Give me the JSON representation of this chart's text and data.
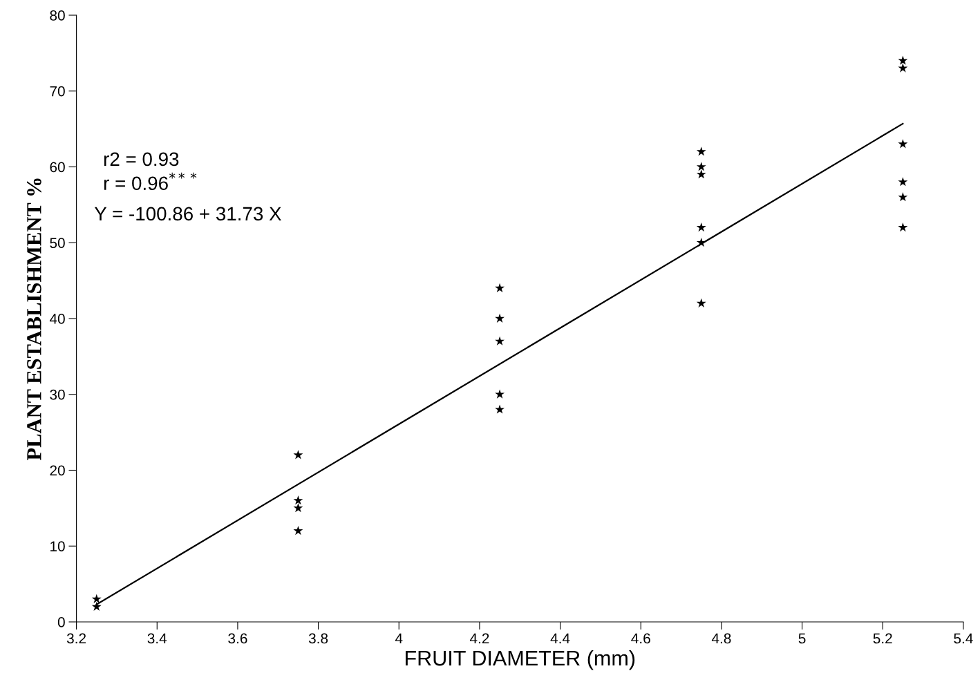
{
  "chart_data": {
    "type": "scatter",
    "xlabel": "FRUIT DIAMETER (mm)",
    "ylabel": "PLANT ESTABLISHMENT %",
    "xlim": [
      3.2,
      5.4
    ],
    "xticks": [
      3.2,
      3.4,
      3.6,
      3.8,
      4,
      4.2,
      4.4,
      4.6,
      4.8,
      5,
      5.2,
      5.4
    ],
    "ylim": [
      0,
      80
    ],
    "yticks": [
      0,
      10,
      20,
      30,
      40,
      50,
      60,
      70,
      80
    ],
    "grid": false,
    "legend": false,
    "marker": "star",
    "series": [
      {
        "color": "#000000",
        "x": [
          3.25,
          3.25,
          3.75,
          3.75,
          3.75,
          3.75,
          4.25,
          4.25,
          4.25,
          4.25,
          4.25,
          4.75,
          4.75,
          4.75,
          4.75,
          4.75,
          4.75,
          5.25,
          5.25,
          5.25,
          5.25,
          5.25,
          5.25
        ],
        "values": [
          3,
          2,
          22,
          16,
          15,
          12,
          44,
          40,
          37,
          30,
          28,
          62,
          60,
          59,
          52,
          50,
          42,
          74,
          73,
          63,
          58,
          56,
          52
        ]
      },
      {
        "type": "line",
        "color": "#000000",
        "line_style": "solid",
        "marker": "none",
        "x": [
          3.25,
          5.25
        ],
        "values": [
          2.3,
          65.7
        ]
      }
    ],
    "annotations": [
      "r2 = 0.93",
      "r = 0.96$^{***}$",
      "Y = -100.86 + 31.73 X"
    ]
  }
}
